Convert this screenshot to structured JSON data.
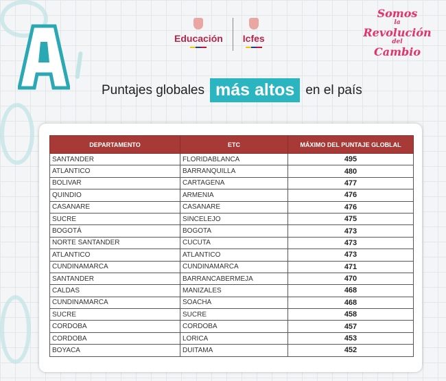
{
  "header": {
    "logo_left": "A",
    "logo_education": "Educación",
    "logo_icfes": "Icfes",
    "slogan": [
      "Somos",
      "la",
      "Revolución",
      "del",
      "Cambio"
    ],
    "title_pre": "Puntajes globales",
    "title_highlight": "más altos",
    "title_post": "en el país"
  },
  "colors": {
    "accent": "#2bb5c1",
    "table_header": "#a73a36",
    "brand": "#b5274a",
    "slogan": "#e2336b"
  },
  "table": {
    "columns": [
      "DEPARTAMENTO",
      "ETC",
      "MÁXIMO DEL PUNTAJE GLOBLAL"
    ],
    "rows": [
      [
        "SANTANDER",
        "FLORIDABLANCA",
        "495"
      ],
      [
        "ATLANTICO",
        "BARRANQUILLA",
        "480"
      ],
      [
        "BOLIVAR",
        "CARTAGENA",
        "477"
      ],
      [
        "QUINDIO",
        "ARMENIA",
        "476"
      ],
      [
        "CASANARE",
        "CASANARE",
        "476"
      ],
      [
        "SUCRE",
        "SINCELEJO",
        "475"
      ],
      [
        "BOGOTÁ",
        "BOGOTA",
        "473"
      ],
      [
        "NORTE SANTANDER",
        "CUCUTA",
        "473"
      ],
      [
        "ATLANTICO",
        "ATLANTICO",
        "473"
      ],
      [
        "CUNDINAMARCA",
        "CUNDINAMARCA",
        "471"
      ],
      [
        "SANTANDER",
        "BARRANCABERMEJA",
        "470"
      ],
      [
        "CALDAS",
        "MANIZALES",
        "468"
      ],
      [
        "CUNDINAMARCA",
        "SOACHA",
        "468"
      ],
      [
        "SUCRE",
        "SUCRE",
        "458"
      ],
      [
        "CORDOBA",
        "CORDOBA",
        "457"
      ],
      [
        "CORDOBA",
        "LORICA",
        "453"
      ],
      [
        "BOYACA",
        "DUITAMA",
        "452"
      ]
    ]
  }
}
